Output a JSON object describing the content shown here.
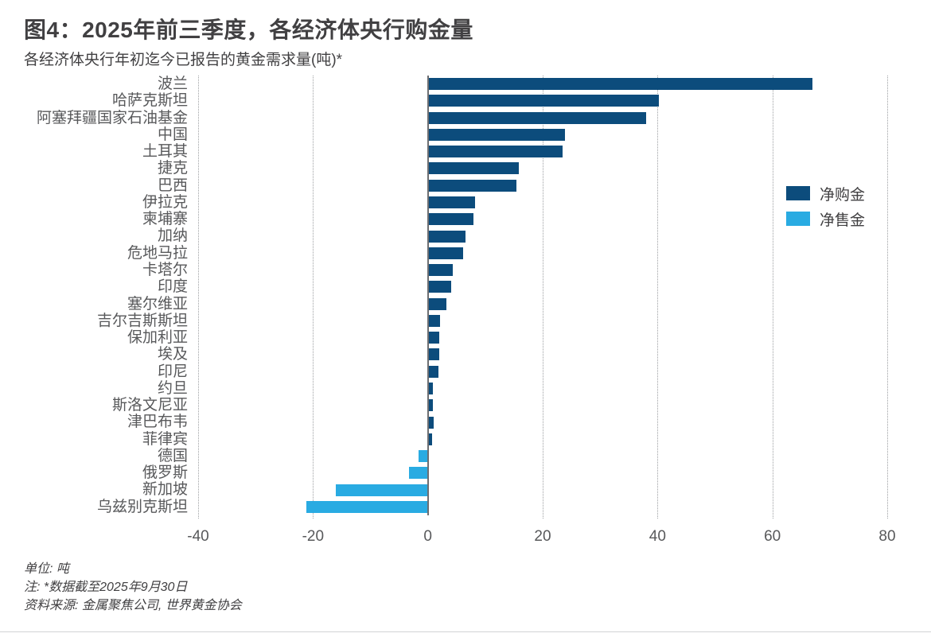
{
  "page": {
    "title": "图4：2025年前三季度，各经济体央行购金量",
    "subtitle": "各经济体央行年初迄今已报告的黄金需求量(吨)*",
    "footer": {
      "unit": "单位: 吨",
      "note": "注: *数据截至2025年9月30日",
      "source": "资料来源: 金属聚焦公司, 世界黄金协会"
    }
  },
  "chart_data": {
    "type": "bar",
    "orientation": "horizontal",
    "title": "图4：2025年前三季度，各经济体央行购金量",
    "subtitle": "各经济体央行年初迄今已报告的黄金需求量(吨)*",
    "xlabel": "吨",
    "ylabel": "",
    "xlim": [
      -40,
      80
    ],
    "xticks": [
      -40,
      -20,
      0,
      20,
      40,
      60,
      80
    ],
    "grid": "vertical dotted gridlines, solid zero line",
    "legend_position": "right",
    "categories": [
      "波兰",
      "哈萨克斯坦",
      "阿塞拜疆国家石油基金",
      "中国",
      "土耳其",
      "捷克",
      "巴西",
      "伊拉克",
      "柬埔寨",
      "加纳",
      "危地马拉",
      "卡塔尔",
      "印度",
      "塞尔维亚",
      "吉尔吉斯斯坦",
      "保加利亚",
      "埃及",
      "印尼",
      "约旦",
      "斯洛文尼亚",
      "津巴布韦",
      "菲律宾",
      "德国",
      "俄罗斯",
      "新加坡",
      "乌兹别克斯坦"
    ],
    "values": [
      67,
      40.3,
      38,
      23.9,
      23.5,
      15.8,
      15.4,
      8.2,
      8,
      6.5,
      6.2,
      4.4,
      4,
      3.2,
      2.1,
      2,
      2,
      1.8,
      0.9,
      0.9,
      1,
      0.7,
      -1.6,
      -3.3,
      -16,
      -21.2
    ],
    "colors": {
      "positive": "#0C4C7C",
      "negative": "#29ABE2",
      "gridline": "#9d9fa2",
      "zeroline": "#6d6e71",
      "text": "#414042",
      "axis_text": "#58595B"
    },
    "legend": [
      {
        "label": "净购金",
        "color": "#0C4C7C"
      },
      {
        "label": "净售金",
        "color": "#29ABE2"
      }
    ]
  }
}
